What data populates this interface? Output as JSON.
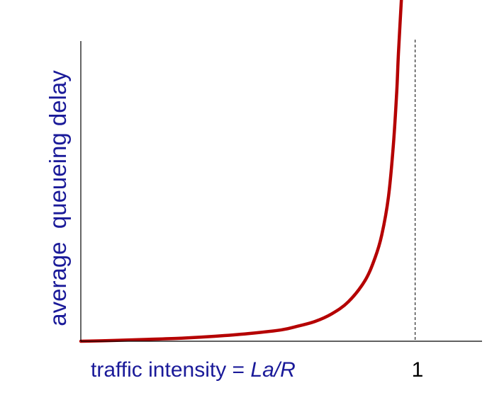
{
  "chart_data": {
    "type": "line",
    "ylabel": "average  queueing delay",
    "xlabel": {
      "prefix": "traffic intensity = ",
      "italic": "La/R"
    },
    "x_tick_label": "1",
    "x_marker": 1,
    "xlim": [
      0,
      1.2
    ],
    "ylim": [
      0,
      45
    ],
    "grid": false,
    "series": [
      {
        "color": "#b50000",
        "points": [
          [
            0,
            0
          ],
          [
            0.1,
            0.1
          ],
          [
            0.2,
            0.25
          ],
          [
            0.3,
            0.4
          ],
          [
            0.4,
            0.65
          ],
          [
            0.5,
            1.0
          ],
          [
            0.6,
            1.5
          ],
          [
            0.65,
            2.0
          ],
          [
            0.7,
            2.6
          ],
          [
            0.75,
            3.6
          ],
          [
            0.8,
            5.2
          ],
          [
            0.85,
            8.0
          ],
          [
            0.88,
            11.0
          ],
          [
            0.9,
            14.0
          ],
          [
            0.92,
            19.0
          ],
          [
            0.935,
            26.0
          ],
          [
            0.945,
            33.0
          ],
          [
            0.95,
            38.0
          ],
          [
            0.96,
            46.0
          ]
        ]
      }
    ],
    "colors": {
      "axis": "#000000",
      "label": "#1a1a99",
      "curve": "#b50000"
    }
  }
}
